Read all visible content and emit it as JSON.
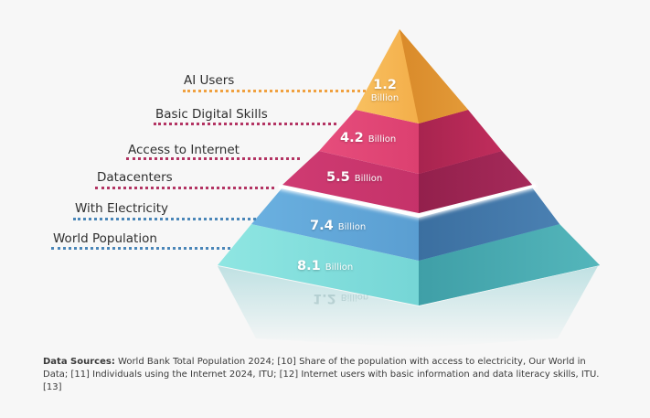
{
  "colors": {
    "ai_users": "#f2a33a",
    "basic_digital_skills": "#d83868",
    "access_to_internet": "#c02a5e",
    "datacenters": "#b42d63",
    "with_electricity": "#4b8cc3",
    "world_population": "#57c3c8",
    "leader_pink": "#b33463",
    "leader_blue": "#4a86b8",
    "leader_orange": "#f0a140"
  },
  "layers": [
    {
      "id": "ai-users",
      "label": "AI Users",
      "value": "1.2",
      "unit": "Billion"
    },
    {
      "id": "basic-digital-skills",
      "label": "Basic Digital Skills",
      "value": "4.2",
      "unit": "Billion"
    },
    {
      "id": "access-to-internet",
      "label": "Access to Internet",
      "value": "5.5",
      "unit": "Billion"
    },
    {
      "id": "datacenters",
      "label": "Datacenters"
    },
    {
      "id": "with-electricity",
      "label": "With Electricity",
      "value": "7.4",
      "unit": "Billion"
    },
    {
      "id": "world-population",
      "label": "World Population",
      "value": "8.1",
      "unit": "Billion"
    }
  ],
  "reflection": {
    "value": "1.2",
    "unit": "Billion"
  },
  "footnote": {
    "heading": "Data Sources:",
    "body": " World Bank Total Population 2024; [10] Share of the population with access to electricity, Our World in Data; [11] Individuals using the Internet 2024, ITU; [12] Internet users with basic information and data literacy skills, ITU. [13]"
  }
}
